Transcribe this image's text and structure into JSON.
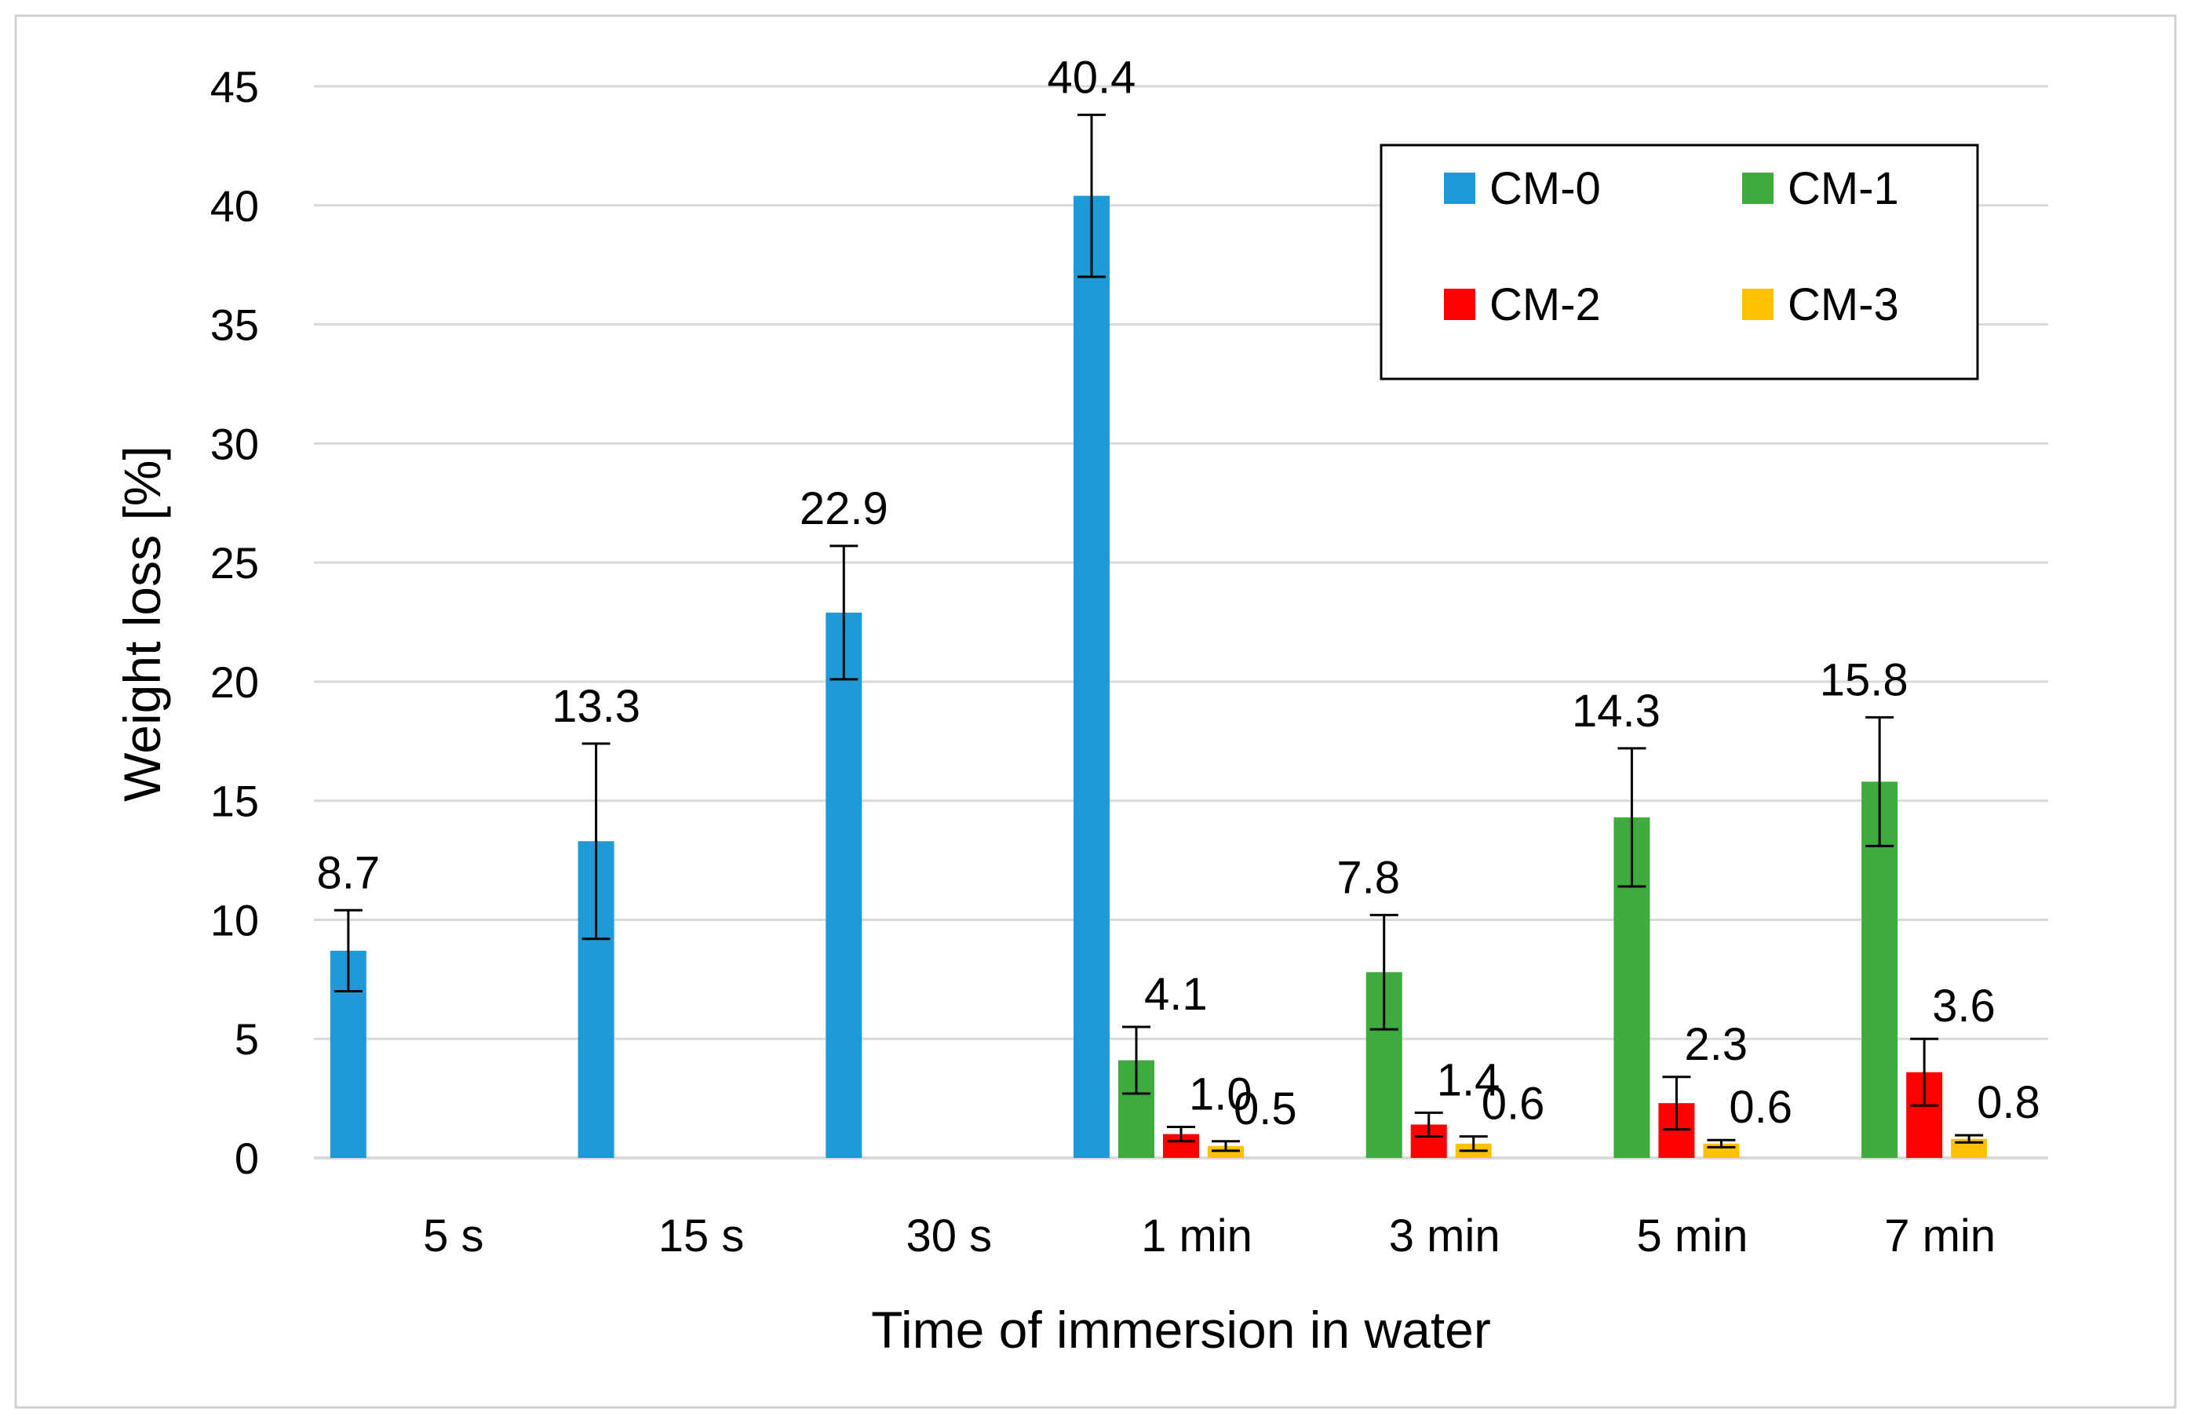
{
  "chart_data": {
    "type": "bar",
    "title": "",
    "xlabel": "Time of immersion in water",
    "ylabel": "Weight loss [%]",
    "ylim": [
      0,
      45
    ],
    "yticks": [
      "0",
      "5",
      "10",
      "15",
      "20",
      "25",
      "30",
      "35",
      "40",
      "45"
    ],
    "categories": [
      "5 s",
      "15 s",
      "30 s",
      "1 min",
      "3 min",
      "5 min",
      "7 min"
    ],
    "grid": true,
    "legend_position": "top-right",
    "series": [
      {
        "name": "CM-0",
        "color": "#1e9bd7",
        "values": [
          8.7,
          13.3,
          22.9,
          40.4,
          null,
          null,
          null
        ],
        "labels": [
          "8.7",
          "13.3",
          "22.9",
          "40.4",
          null,
          null,
          null
        ],
        "error": [
          1.7,
          4.1,
          2.8,
          3.4,
          null,
          null,
          null
        ]
      },
      {
        "name": "CM-1",
        "color": "#3dab3d",
        "values": [
          null,
          null,
          null,
          4.1,
          7.8,
          14.3,
          15.8
        ],
        "labels": [
          null,
          null,
          null,
          "4.1",
          "7.8",
          "14.3",
          "15.8"
        ],
        "error": [
          null,
          null,
          null,
          1.4,
          2.4,
          2.9,
          2.7
        ]
      },
      {
        "name": "CM-2",
        "color": "#ff0000",
        "values": [
          null,
          null,
          null,
          1.0,
          1.4,
          2.3,
          3.6
        ],
        "labels": [
          null,
          null,
          null,
          "1.0",
          "1.4",
          "2.3",
          "3.6"
        ],
        "error": [
          null,
          null,
          null,
          0.3,
          0.5,
          1.1,
          1.4
        ]
      },
      {
        "name": "CM-3",
        "color": "#ffc000",
        "values": [
          null,
          null,
          null,
          0.5,
          0.6,
          0.6,
          0.8
        ],
        "labels": [
          null,
          null,
          null,
          "0.5",
          "0.6",
          "0.6",
          "0.8"
        ],
        "error": [
          null,
          null,
          null,
          0.2,
          0.3,
          0.15,
          0.15
        ]
      }
    ]
  }
}
